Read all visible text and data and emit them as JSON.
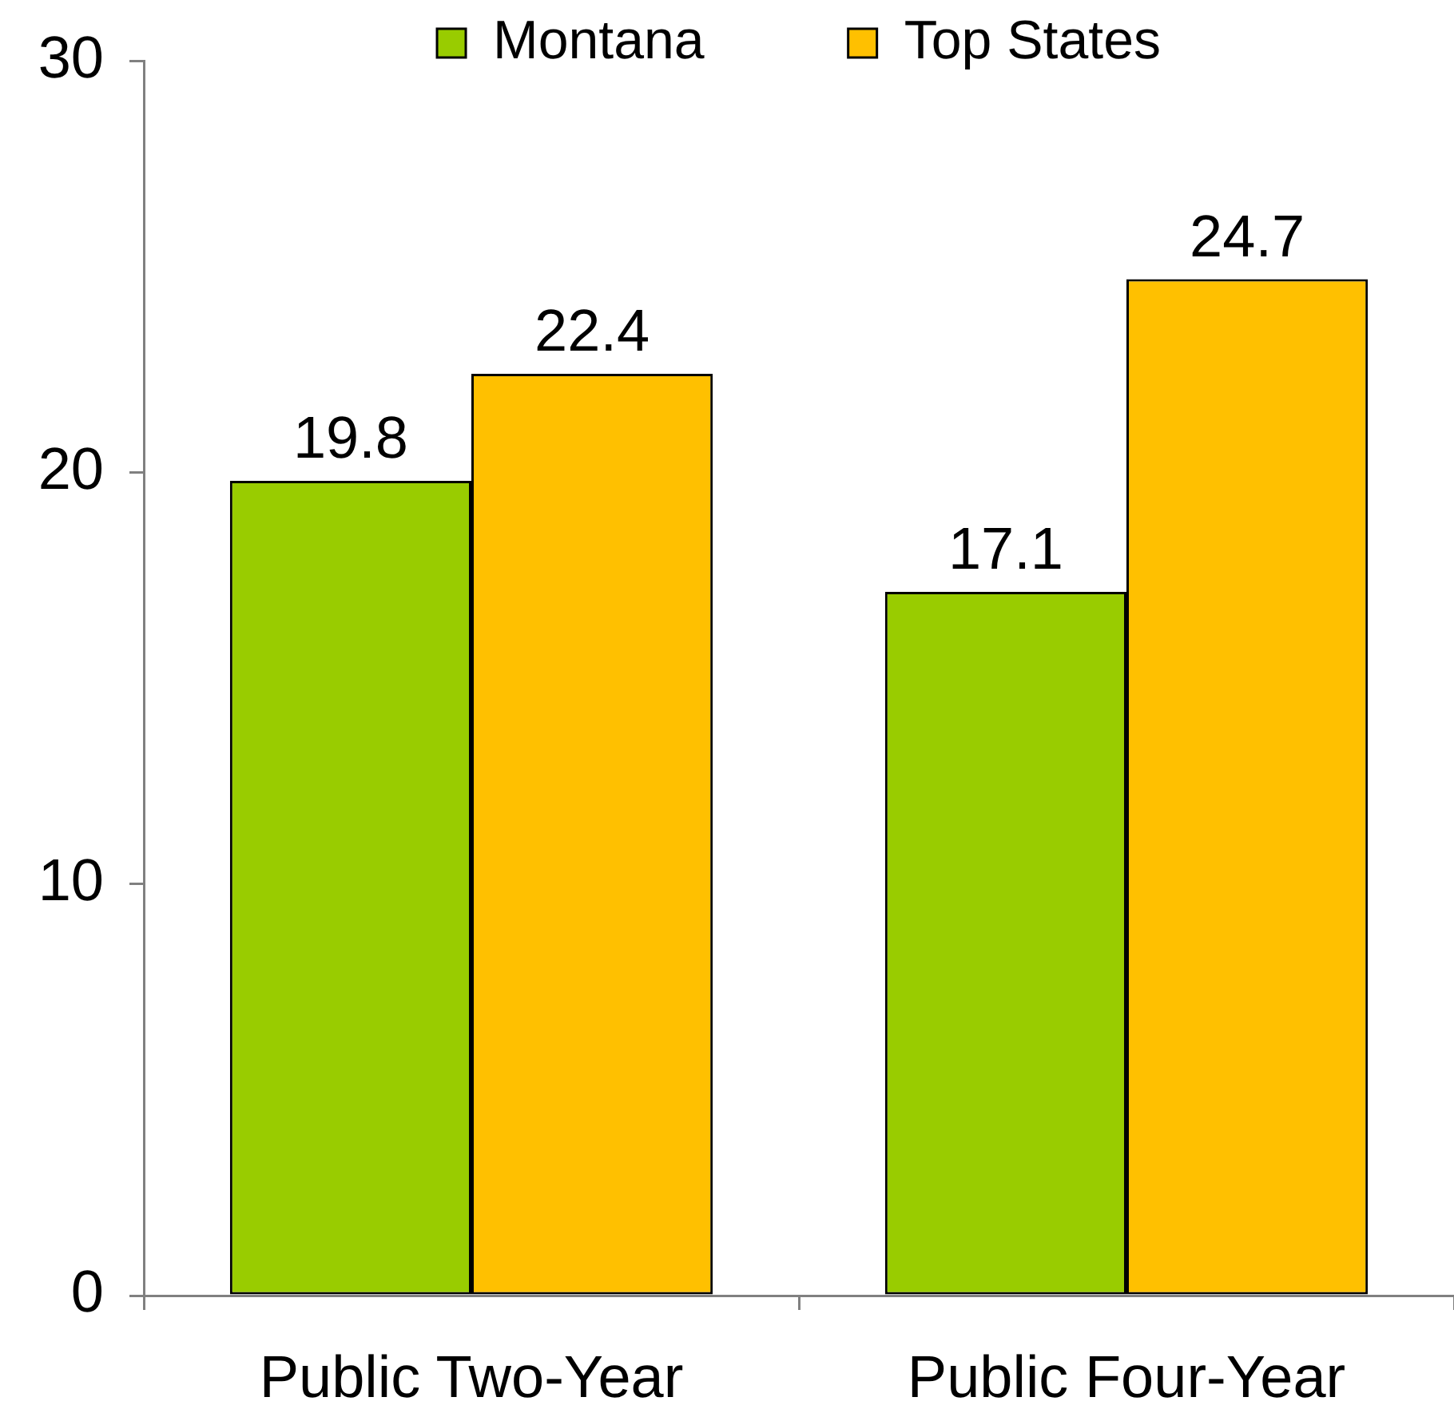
{
  "chart_data": {
    "type": "bar",
    "categories": [
      "Public Two-Year",
      "Public Four-Year"
    ],
    "series": [
      {
        "name": "Montana",
        "color": "#99cc00",
        "values": [
          19.8,
          17.1
        ]
      },
      {
        "name": "Top States",
        "color": "#ffc000",
        "values": [
          22.4,
          24.7
        ]
      }
    ],
    "ylim": [
      0,
      30
    ],
    "yticks": [
      0,
      10,
      20,
      30
    ],
    "data_labels": true,
    "legend": "top",
    "grid": false
  }
}
